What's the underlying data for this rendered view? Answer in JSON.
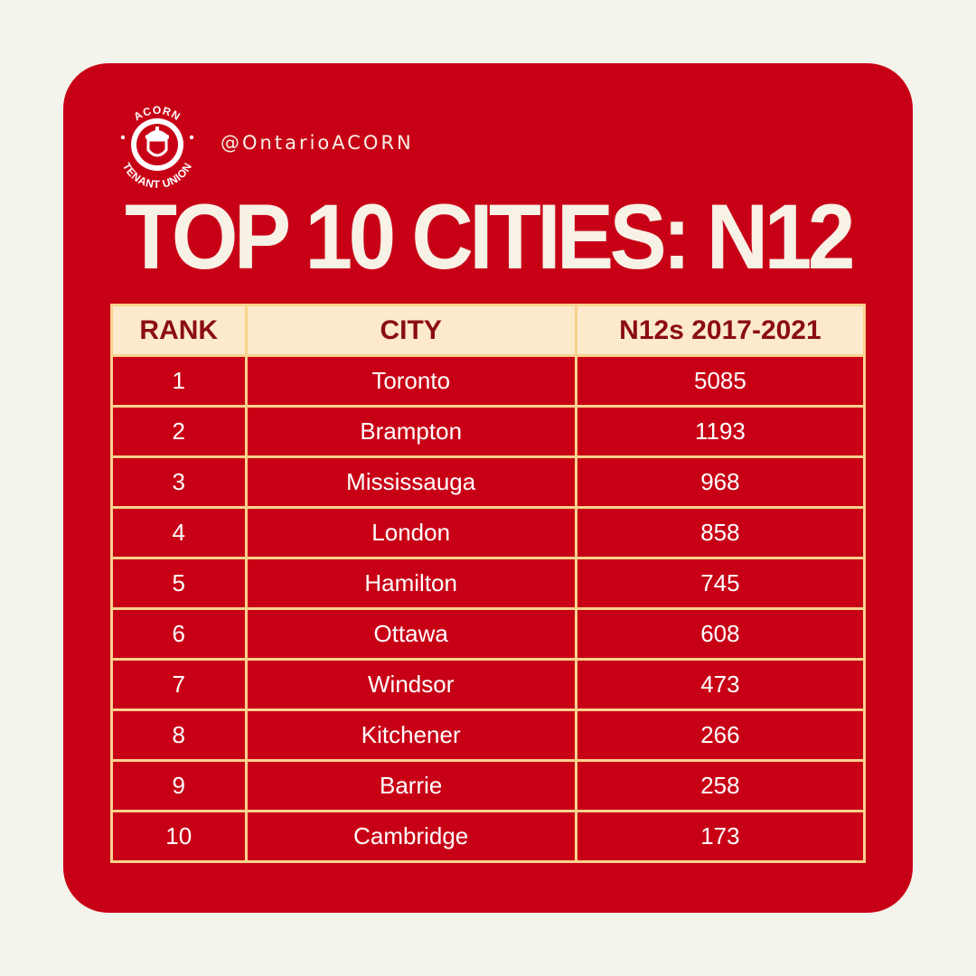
{
  "handle": "@OntarioACORN",
  "logo": {
    "top_text": "ACORN",
    "bottom_text": "TENANT UNION"
  },
  "title": "TOP 10 CITIES: N12",
  "colors": {
    "page_background": "#f4f4ec",
    "card": "#c80016",
    "header_fill": "#fde9cc",
    "header_text": "#8a0d12",
    "grid_lines": "#f8d28c",
    "cell_text": "#ffffff"
  },
  "chart_data": {
    "type": "table",
    "columns": [
      "RANK",
      "CITY",
      "N12s 2017-2021"
    ],
    "rows": [
      [
        "1",
        "Toronto",
        "5085"
      ],
      [
        "2",
        "Brampton",
        "1193"
      ],
      [
        "3",
        "Mississauga",
        "968"
      ],
      [
        "4",
        "London",
        "858"
      ],
      [
        "5",
        "Hamilton",
        "745"
      ],
      [
        "6",
        "Ottawa",
        "608"
      ],
      [
        "7",
        "Windsor",
        "473"
      ],
      [
        "8",
        "Kitchener",
        "266"
      ],
      [
        "9",
        "Barrie",
        "258"
      ],
      [
        "10",
        "Cambridge",
        "173"
      ]
    ]
  }
}
